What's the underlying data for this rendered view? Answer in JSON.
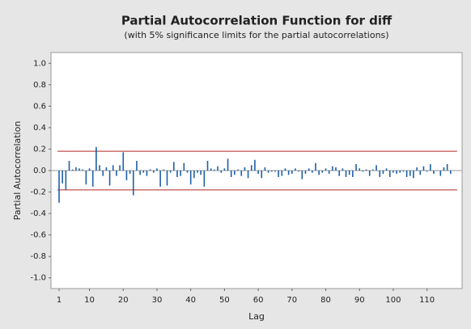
{
  "chart_data": {
    "type": "bar",
    "title": "Partial Autocorrelation Function for diff",
    "subtitle": "(with 5% significance limits for the partial autocorrelations)",
    "x_label": "Lag",
    "y_label": "Partial Autocorrelation",
    "x": [
      1,
      2,
      3,
      4,
      5,
      6,
      7,
      8,
      9,
      10,
      11,
      12,
      13,
      14,
      15,
      16,
      17,
      18,
      19,
      20,
      21,
      22,
      23,
      24,
      25,
      26,
      27,
      28,
      29,
      30,
      31,
      32,
      33,
      34,
      35,
      36,
      37,
      38,
      39,
      40,
      41,
      42,
      43,
      44,
      45,
      46,
      47,
      48,
      49,
      50,
      51,
      52,
      53,
      54,
      55,
      56,
      57,
      58,
      59,
      60,
      61,
      62,
      63,
      64,
      65,
      66,
      67,
      68,
      69,
      70,
      71,
      72,
      73,
      74,
      75,
      76,
      77,
      78,
      79,
      80,
      81,
      82,
      83,
      84,
      85,
      86,
      87,
      88,
      89,
      90,
      91,
      92,
      93,
      94,
      95,
      96,
      97,
      98,
      99,
      100,
      101,
      102,
      103,
      104,
      105,
      106,
      107,
      108,
      109,
      110,
      111,
      112,
      113,
      114,
      115,
      116,
      117
    ],
    "values": [
      -0.3,
      -0.12,
      -0.18,
      0.09,
      0.01,
      0.03,
      0.02,
      0.01,
      -0.13,
      0.02,
      -0.15,
      0.22,
      0.05,
      -0.05,
      0.03,
      -0.14,
      0.05,
      -0.05,
      0.05,
      0.17,
      -0.09,
      -0.03,
      -0.23,
      0.09,
      -0.04,
      -0.02,
      -0.05,
      0.01,
      -0.02,
      0.02,
      -0.15,
      0.01,
      -0.14,
      -0.02,
      0.08,
      -0.06,
      -0.05,
      0.07,
      -0.02,
      -0.13,
      -0.07,
      -0.02,
      -0.04,
      -0.15,
      0.09,
      0.02,
      0.01,
      0.04,
      -0.02,
      0.02,
      0.11,
      -0.06,
      -0.04,
      0.01,
      -0.05,
      0.03,
      -0.07,
      0.05,
      0.1,
      -0.03,
      -0.07,
      0.03,
      -0.02,
      -0.01,
      -0.01,
      -0.06,
      -0.05,
      0.02,
      -0.04,
      -0.03,
      0.02,
      -0.01,
      -0.08,
      -0.03,
      0.02,
      -0.02,
      0.07,
      -0.04,
      -0.02,
      0.02,
      -0.03,
      0.04,
      0.03,
      -0.05,
      0.02,
      -0.06,
      -0.04,
      -0.06,
      0.06,
      0.02,
      -0.01,
      0.01,
      -0.05,
      0.01,
      0.05,
      -0.06,
      -0.03,
      0.02,
      -0.06,
      -0.02,
      -0.03,
      -0.02,
      -0.01,
      -0.06,
      -0.05,
      -0.07,
      0.03,
      -0.04,
      0.04,
      -0.01,
      0.06,
      -0.03,
      0.0,
      -0.05,
      0.03,
      0.06,
      -0.03
    ],
    "color": "#1f5fa8",
    "significance_limits": [
      0.18,
      -0.18
    ],
    "limit_color": "#c0504d",
    "xlim": [
      -1.4,
      120.4
    ],
    "xticks": [
      1,
      10,
      20,
      30,
      40,
      50,
      60,
      70,
      80,
      90,
      100,
      110
    ],
    "ylim": [
      -1.1,
      1.1
    ],
    "yticks": [
      {
        "value": -1,
        "label": "-1.0"
      },
      -0.8,
      -0.6,
      -0.4,
      -0.2,
      {
        "value": 0,
        "label": "0.0"
      },
      0.2,
      0.4,
      0.6,
      0.8,
      {
        "value": 1,
        "label": "1.0"
      }
    ]
  }
}
